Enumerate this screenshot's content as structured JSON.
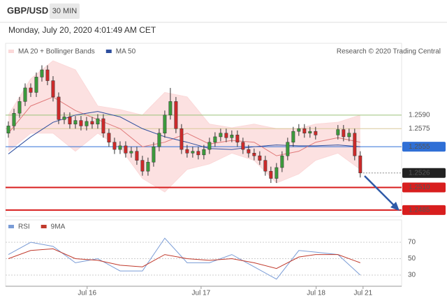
{
  "chart_data": {
    "type": "candlestick",
    "title": "GBP/USD",
    "timeframe": "30 MIN",
    "subtitle": "Monday, July 20, 2020 4:01:49 AM CET",
    "source": "Research © 2020 Trading Central",
    "up_color": "#3c9a3c",
    "down_color": "#cc2a2a",
    "x": [
      0,
      1,
      2,
      3,
      4,
      5,
      6,
      7,
      8,
      9,
      10,
      11,
      12,
      13,
      14,
      15,
      16,
      17,
      18,
      19,
      20,
      21,
      22,
      23,
      24,
      25,
      26,
      27,
      28,
      29,
      30,
      31,
      32,
      33,
      34,
      35,
      36,
      37,
      38,
      39,
      40,
      41,
      42,
      43,
      44,
      45,
      46,
      47,
      48,
      49,
      50,
      51,
      52,
      53,
      54,
      55,
      59,
      60,
      61,
      62,
      63
    ],
    "open": [
      1.257,
      1.2578,
      1.2592,
      1.2605,
      1.262,
      1.2615,
      1.2632,
      1.264,
      1.2628,
      1.261,
      1.2585,
      1.2588,
      1.258,
      1.2584,
      1.2578,
      1.2583,
      1.258,
      1.2586,
      1.257,
      1.256,
      1.2552,
      1.2556,
      1.2548,
      1.255,
      1.254,
      1.2528,
      1.2538,
      1.2555,
      1.257,
      1.259,
      1.2605,
      1.2575,
      1.2552,
      1.2548,
      1.255,
      1.2546,
      1.2552,
      1.256,
      1.2566,
      1.257,
      1.2565,
      1.2568,
      1.256,
      1.2552,
      1.2548,
      1.2545,
      1.254,
      1.2528,
      1.252,
      1.2532,
      1.2545,
      1.256,
      1.2572,
      1.2575,
      1.257,
      1.2572,
      1.2568,
      1.2574,
      1.2566,
      1.257,
      1.2545
    ],
    "high": [
      1.2583,
      1.2597,
      1.261,
      1.2625,
      1.2625,
      1.2637,
      1.2645,
      1.2645,
      1.2633,
      1.2615,
      1.2593,
      1.2593,
      1.2589,
      1.2589,
      1.2588,
      1.2588,
      1.2591,
      1.2591,
      1.2575,
      1.2565,
      1.2561,
      1.2561,
      1.2555,
      1.2555,
      1.2545,
      1.2543,
      1.256,
      1.2575,
      1.2595,
      1.262,
      1.261,
      1.258,
      1.2557,
      1.2555,
      1.2555,
      1.2557,
      1.2565,
      1.2571,
      1.2575,
      1.2575,
      1.2573,
      1.2573,
      1.2565,
      1.2557,
      1.2553,
      1.255,
      1.2545,
      1.2533,
      1.2537,
      1.255,
      1.2565,
      1.2577,
      1.258,
      1.258,
      1.2577,
      1.2577,
      1.2579,
      1.2579,
      1.2575,
      1.2575,
      1.255
    ],
    "low": [
      1.2565,
      1.2573,
      1.2587,
      1.26,
      1.261,
      1.261,
      1.2627,
      1.2623,
      1.2605,
      1.258,
      1.258,
      1.2575,
      1.2575,
      1.2573,
      1.2573,
      1.2575,
      1.2575,
      1.2565,
      1.2555,
      1.2547,
      1.2547,
      1.2543,
      1.2543,
      1.2535,
      1.2523,
      1.2523,
      1.2533,
      1.255,
      1.2565,
      1.2585,
      1.257,
      1.2547,
      1.2543,
      1.2543,
      1.2541,
      1.2541,
      1.2547,
      1.2555,
      1.2561,
      1.256,
      1.256,
      1.2555,
      1.2547,
      1.2543,
      1.254,
      1.2535,
      1.2523,
      1.2515,
      1.2515,
      1.2527,
      1.254,
      1.2555,
      1.2567,
      1.2565,
      1.2565,
      1.2563,
      1.2563,
      1.2561,
      1.2561,
      1.254,
      1.2521
    ],
    "close": [
      1.2578,
      1.2592,
      1.2605,
      1.262,
      1.2615,
      1.2632,
      1.264,
      1.2628,
      1.261,
      1.2585,
      1.2588,
      1.258,
      1.2584,
      1.2578,
      1.2583,
      1.258,
      1.2586,
      1.257,
      1.256,
      1.2552,
      1.2556,
      1.2548,
      1.255,
      1.254,
      1.2528,
      1.2538,
      1.2555,
      1.257,
      1.259,
      1.2605,
      1.2575,
      1.2552,
      1.2548,
      1.255,
      1.2546,
      1.2552,
      1.256,
      1.2566,
      1.257,
      1.2565,
      1.2568,
      1.256,
      1.2552,
      1.2548,
      1.2545,
      1.254,
      1.2528,
      1.252,
      1.2532,
      1.2545,
      1.256,
      1.2572,
      1.2575,
      1.257,
      1.2572,
      1.2568,
      1.2574,
      1.2566,
      1.257,
      1.2545,
      1.2526
    ],
    "xlim": [
      -0.5,
      70.4
    ],
    "xticks": [
      {
        "value": 14.1,
        "label": "Jul 16"
      },
      {
        "value": 34.5,
        "label": "Jul 17"
      },
      {
        "value": 55.1,
        "label": "Jul 18"
      },
      {
        "value": 63.5,
        "label": "Jul 21"
      }
    ],
    "ylim": [
      1.2478,
      1.2667
    ],
    "overlays": {
      "x": [
        0,
        4,
        8,
        12,
        16,
        20,
        24,
        28,
        32,
        36,
        40,
        44,
        48,
        52,
        55,
        59,
        63
      ],
      "series": [
        {
          "name": "MA 20 + Bollinger Bands",
          "color": "#e07a7a",
          "band_color": "#fbd9d9",
          "values": [
            1.257,
            1.26,
            1.261,
            1.2595,
            1.2585,
            1.2575,
            1.2555,
            1.256,
            1.257,
            1.2558,
            1.2562,
            1.256,
            1.2545,
            1.255,
            1.256,
            1.2565,
            1.256
          ],
          "upper": [
            1.259,
            1.263,
            1.265,
            1.264,
            1.26,
            1.2596,
            1.259,
            1.2615,
            1.261,
            1.258,
            1.2576,
            1.258,
            1.2575,
            1.2575,
            1.258,
            1.2582,
            1.259
          ],
          "lower": [
            1.255,
            1.257,
            1.257,
            1.255,
            1.257,
            1.2554,
            1.252,
            1.2505,
            1.253,
            1.2536,
            1.2548,
            1.254,
            1.2515,
            1.2525,
            1.254,
            1.2548,
            1.253
          ]
        },
        {
          "name": "MA 50",
          "color": "#2e4e9e",
          "values": [
            1.2547,
            1.2566,
            1.2582,
            1.259,
            1.2594,
            1.2588,
            1.2575,
            1.2566,
            1.256,
            1.2553,
            1.2552,
            1.2555,
            1.2557,
            1.2556,
            1.2556,
            1.2557,
            1.2555
          ]
        }
      ]
    },
    "levels": [
      {
        "value": 1.259,
        "label": "1.2590",
        "color": "#9cc27a",
        "text_color": "#5f9a2e",
        "box": false
      },
      {
        "value": 1.2575,
        "label": "1.2575",
        "color": "#d9c99a",
        "text_color": "#9a9a30",
        "box": false
      },
      {
        "value": 1.2555,
        "label": "1.2555",
        "color": "#2f6fd6",
        "text_color": "#ffffff",
        "box": true
      },
      {
        "value": 1.2526,
        "label": "1.2526",
        "color": "#222222",
        "text_color": "#ffffff",
        "box": true
      },
      {
        "value": 1.251,
        "label": "1.2510",
        "color": "#d81e1e",
        "text_color": "#ffffff",
        "box": true
      },
      {
        "value": 1.2485,
        "label": "1.2485",
        "color": "#d81e1e",
        "text_color": "#ffffff",
        "box": true
      }
    ],
    "indicator": {
      "type": "line",
      "x": [
        0,
        4,
        8,
        12,
        16,
        20,
        24,
        28,
        32,
        36,
        40,
        44,
        48,
        52,
        55,
        59,
        63
      ],
      "series": [
        {
          "name": "RSI",
          "color": "#7a9cd6",
          "values": [
            55,
            70,
            65,
            45,
            50,
            35,
            35,
            75,
            45,
            45,
            55,
            40,
            25,
            60,
            58,
            55,
            30
          ]
        },
        {
          "name": "9MA",
          "color": "#c0392b",
          "values": [
            50,
            60,
            62,
            50,
            48,
            42,
            40,
            55,
            50,
            48,
            50,
            45,
            38,
            52,
            55,
            55,
            45
          ]
        }
      ],
      "ylim": [
        20.6,
        84.5
      ],
      "yticks": [
        30,
        50,
        70
      ]
    }
  }
}
